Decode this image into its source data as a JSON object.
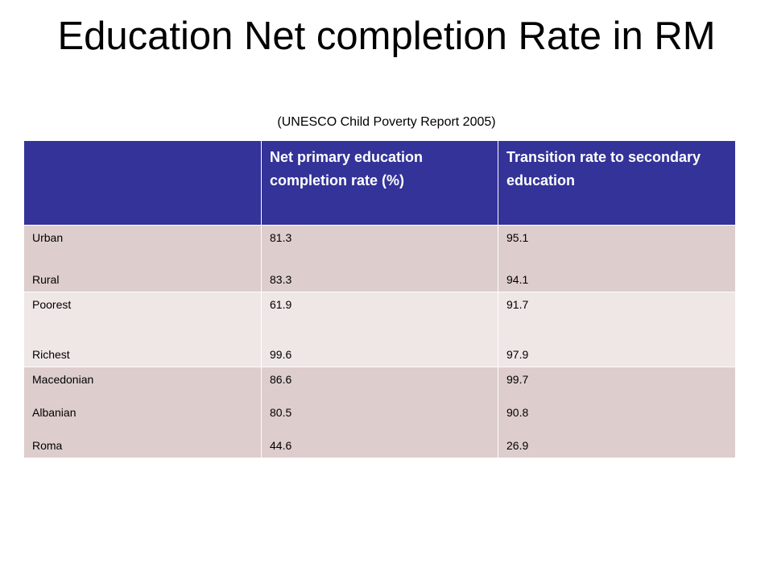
{
  "slide": {
    "title": "Education Net completion Rate in RM",
    "subtitle": "(UNESCO Child Poverty Report 2005)"
  },
  "table": {
    "header": [
      "",
      "Net primary education completion    rate (%)",
      "Transition rate to secondary education"
    ],
    "groups": [
      {
        "labels": [
          "Urban",
          "Rural"
        ],
        "completion": [
          "81.3",
          "83.3"
        ],
        "transition": [
          "95.1",
          "94.1"
        ]
      },
      {
        "labels": [
          "Poorest",
          "Richest"
        ],
        "completion": [
          "61.9",
          "99.6"
        ],
        "transition": [
          "91.7",
          "97.9"
        ]
      },
      {
        "labels": [
          "Macedonian",
          "Albanian",
          "Roma"
        ],
        "completion": [
          "86.6",
          "80.5",
          "44.6"
        ],
        "transition": [
          "99.7",
          "90.8",
          "26.9"
        ]
      }
    ]
  },
  "colors": {
    "header_bg": "#333399",
    "band_dark": "#decdcd",
    "band_light": "#efe6e6"
  }
}
